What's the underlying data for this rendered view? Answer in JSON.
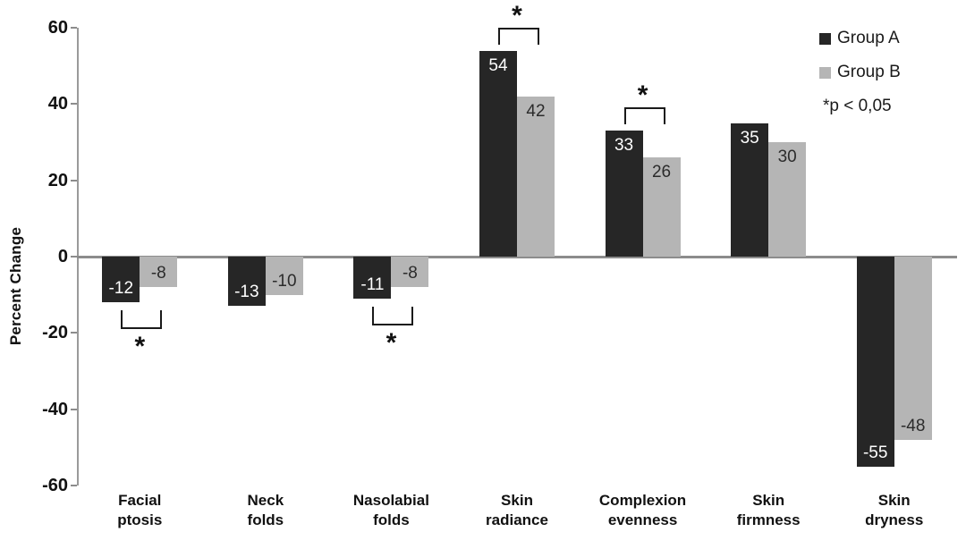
{
  "chart_data": {
    "type": "bar",
    "title": "",
    "xlabel": "",
    "ylabel": "Percent Change",
    "ylim": [
      -60,
      60
    ],
    "ytick_step": 20,
    "ytick_values": [
      60,
      40,
      20,
      0,
      -20,
      -40,
      -60
    ],
    "grid": false,
    "axis_color": "#8c8c8c",
    "categories": [
      "Facial ptosis",
      "Neck folds",
      "Nasolabial folds",
      "Skin radiance",
      "Complexion evenness",
      "Skin firmness",
      "Skin dryness"
    ],
    "category_label_lines": [
      [
        "Facial",
        "ptosis"
      ],
      [
        "Neck",
        "folds"
      ],
      [
        "Nasolabial",
        "folds"
      ],
      [
        "Skin",
        "radiance"
      ],
      [
        "Complexion",
        "evenness"
      ],
      [
        "Skin",
        "firmness"
      ],
      [
        "Skin",
        "dryness"
      ]
    ],
    "series": [
      {
        "name": "Group A",
        "color": "#262626",
        "label_color": "#ffffff",
        "values": [
          -12,
          -13,
          -11,
          54,
          33,
          35,
          -55
        ]
      },
      {
        "name": "Group B",
        "color": "#b5b5b5",
        "label_color": "#2b2b2b",
        "values": [
          -8,
          -10,
          -8,
          42,
          26,
          30,
          -48
        ]
      }
    ],
    "significance_marker": "*",
    "significant_flags": [
      true,
      false,
      true,
      true,
      true,
      false,
      false
    ],
    "significant_pairs": [
      "Facial ptosis",
      "Nasolabial folds",
      "Skin radiance",
      "Complexion evenness"
    ],
    "legend": {
      "position": "top-right",
      "items": [
        {
          "label": "Group A",
          "color": "#262626"
        },
        {
          "label": "Group B",
          "color": "#b5b5b5"
        }
      ],
      "note": "*p < 0,05"
    }
  }
}
